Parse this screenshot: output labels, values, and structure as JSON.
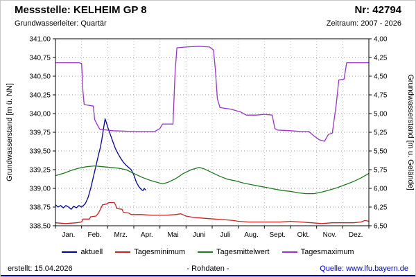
{
  "header": {
    "title": "Messstelle: KELHEIM GP 8",
    "number": "Nr: 42794",
    "aquifer": "Grundwasserleiter: Quartär",
    "period": "Zeitraum: 2007 - 2026"
  },
  "footer": {
    "created": "erstellt: 15.04.2026",
    "center": "- Rohdaten -",
    "source": "Quelle: www.lfu.bayern.de"
  },
  "colors": {
    "link": "#0000cc",
    "bottom_rule": "#0000aa"
  },
  "chart_data": {
    "type": "line",
    "title": "",
    "x_unit": "month (0 = 1. Jan, 12 = 31. Dez)",
    "x_categories": [
      "Jan.",
      "Feb.",
      "Mrz.",
      "Apr.",
      "Mai",
      "Juni",
      "Juli",
      "Aug.",
      "Sept.",
      "Okt.",
      "Nov.",
      "Dez."
    ],
    "ylabel_left": "Grundwasserstand [m ü. NN]",
    "ylabel_right": "Grundwasserstand [m u. Gelände]",
    "ylim_left": [
      338.5,
      341.0
    ],
    "ylim_right_top_to_bottom": [
      4.0,
      6.5
    ],
    "y_left_ticks": [
      "341,00",
      "340,75",
      "340,50",
      "340,25",
      "340,00",
      "339,75",
      "339,50",
      "339,25",
      "339,00",
      "338,75",
      "338,50"
    ],
    "y_right_ticks": [
      "4,00",
      "4,25",
      "4,50",
      "4,75",
      "5,00",
      "5,25",
      "5,50",
      "5,75",
      "6,00",
      "6,25",
      "6,50"
    ],
    "grid": "dotted",
    "legend_position": "bottom",
    "series": [
      {
        "name": "aktuell",
        "color": "#0000aa",
        "points": [
          [
            0.0,
            338.78
          ],
          [
            0.1,
            338.75
          ],
          [
            0.2,
            338.77
          ],
          [
            0.3,
            338.74
          ],
          [
            0.4,
            338.77
          ],
          [
            0.5,
            338.75
          ],
          [
            0.6,
            338.72
          ],
          [
            0.7,
            338.76
          ],
          [
            0.8,
            338.74
          ],
          [
            0.9,
            338.77
          ],
          [
            1.0,
            338.75
          ],
          [
            1.1,
            338.78
          ],
          [
            1.15,
            338.8
          ],
          [
            1.25,
            338.88
          ],
          [
            1.35,
            339.0
          ],
          [
            1.45,
            339.15
          ],
          [
            1.55,
            339.3
          ],
          [
            1.65,
            339.45
          ],
          [
            1.72,
            339.55
          ],
          [
            1.78,
            339.66
          ],
          [
            1.84,
            339.8
          ],
          [
            1.9,
            339.93
          ],
          [
            1.95,
            339.88
          ],
          [
            2.0,
            339.82
          ],
          [
            2.1,
            339.72
          ],
          [
            2.2,
            339.62
          ],
          [
            2.3,
            339.53
          ],
          [
            2.4,
            339.46
          ],
          [
            2.5,
            339.4
          ],
          [
            2.6,
            339.35
          ],
          [
            2.7,
            339.31
          ],
          [
            2.8,
            339.28
          ],
          [
            2.9,
            339.25
          ],
          [
            3.0,
            339.18
          ],
          [
            3.1,
            339.08
          ],
          [
            3.2,
            339.02
          ],
          [
            3.3,
            338.98
          ],
          [
            3.35,
            338.97
          ],
          [
            3.4,
            339.0
          ],
          [
            3.45,
            338.98
          ]
        ]
      },
      {
        "name": "Tagesminimum",
        "color": "#cc2222",
        "points": [
          [
            0.0,
            338.54
          ],
          [
            0.4,
            338.53
          ],
          [
            0.8,
            338.54
          ],
          [
            1.0,
            338.55
          ],
          [
            1.05,
            338.59
          ],
          [
            1.3,
            338.59
          ],
          [
            1.35,
            338.62
          ],
          [
            1.55,
            338.63
          ],
          [
            1.65,
            338.67
          ],
          [
            1.72,
            338.72
          ],
          [
            1.8,
            338.78
          ],
          [
            1.95,
            338.79
          ],
          [
            2.05,
            338.81
          ],
          [
            2.25,
            338.81
          ],
          [
            2.3,
            338.78
          ],
          [
            2.35,
            338.73
          ],
          [
            2.55,
            338.72
          ],
          [
            2.6,
            338.68
          ],
          [
            2.8,
            338.67
          ],
          [
            2.9,
            338.65
          ],
          [
            3.3,
            338.65
          ],
          [
            3.7,
            338.64
          ],
          [
            4.2,
            338.64
          ],
          [
            4.6,
            338.65
          ],
          [
            4.8,
            338.66
          ],
          [
            5.0,
            338.63
          ],
          [
            5.3,
            338.61
          ],
          [
            5.7,
            338.6
          ],
          [
            6.1,
            338.59
          ],
          [
            6.5,
            338.58
          ],
          [
            6.8,
            338.57
          ],
          [
            7.0,
            338.56
          ],
          [
            7.4,
            338.55
          ],
          [
            8.0,
            338.55
          ],
          [
            8.6,
            338.55
          ],
          [
            9.0,
            338.56
          ],
          [
            9.4,
            338.55
          ],
          [
            9.8,
            338.54
          ],
          [
            10.2,
            338.53
          ],
          [
            10.6,
            338.54
          ],
          [
            11.0,
            338.54
          ],
          [
            11.4,
            338.54
          ],
          [
            11.7,
            338.55
          ],
          [
            11.85,
            338.57
          ],
          [
            12.0,
            338.56
          ]
        ]
      },
      {
        "name": "Tagesmittelwert",
        "color": "#1f7a1f",
        "points": [
          [
            0.0,
            339.17
          ],
          [
            0.3,
            339.2
          ],
          [
            0.6,
            339.24
          ],
          [
            0.9,
            339.27
          ],
          [
            1.2,
            339.29
          ],
          [
            1.5,
            339.3
          ],
          [
            1.8,
            339.29
          ],
          [
            2.1,
            339.28
          ],
          [
            2.4,
            339.27
          ],
          [
            2.7,
            339.25
          ],
          [
            3.0,
            339.2
          ],
          [
            3.3,
            339.15
          ],
          [
            3.6,
            339.11
          ],
          [
            3.9,
            339.08
          ],
          [
            4.1,
            339.06
          ],
          [
            4.3,
            339.08
          ],
          [
            4.6,
            339.13
          ],
          [
            4.9,
            339.2
          ],
          [
            5.2,
            339.25
          ],
          [
            5.5,
            339.28
          ],
          [
            5.7,
            339.26
          ],
          [
            6.0,
            339.21
          ],
          [
            6.3,
            339.16
          ],
          [
            6.6,
            339.12
          ],
          [
            6.9,
            339.1
          ],
          [
            7.2,
            339.07
          ],
          [
            7.5,
            339.05
          ],
          [
            7.8,
            339.03
          ],
          [
            8.1,
            339.01
          ],
          [
            8.4,
            338.99
          ],
          [
            8.7,
            338.97
          ],
          [
            9.0,
            338.96
          ],
          [
            9.3,
            338.94
          ],
          [
            9.6,
            338.93
          ],
          [
            9.9,
            338.93
          ],
          [
            10.2,
            338.95
          ],
          [
            10.5,
            338.98
          ],
          [
            10.8,
            339.01
          ],
          [
            11.1,
            339.05
          ],
          [
            11.4,
            339.09
          ],
          [
            11.7,
            339.14
          ],
          [
            12.0,
            339.2
          ]
        ]
      },
      {
        "name": "Tagesmaximum",
        "color": "#9933cc",
        "points": [
          [
            0.0,
            340.68
          ],
          [
            0.9,
            340.68
          ],
          [
            1.0,
            340.67
          ],
          [
            1.05,
            340.3
          ],
          [
            1.1,
            340.12
          ],
          [
            1.45,
            340.1
          ],
          [
            1.5,
            339.92
          ],
          [
            1.6,
            339.85
          ],
          [
            1.7,
            339.79
          ],
          [
            2.2,
            339.77
          ],
          [
            3.0,
            339.76
          ],
          [
            3.8,
            339.76
          ],
          [
            4.0,
            339.8
          ],
          [
            4.1,
            339.86
          ],
          [
            4.5,
            339.86
          ],
          [
            4.58,
            340.55
          ],
          [
            4.65,
            340.88
          ],
          [
            5.0,
            340.89
          ],
          [
            5.5,
            340.9
          ],
          [
            5.9,
            340.89
          ],
          [
            6.05,
            340.85
          ],
          [
            6.12,
            340.6
          ],
          [
            6.2,
            340.2
          ],
          [
            6.3,
            340.08
          ],
          [
            6.7,
            340.06
          ],
          [
            7.1,
            340.02
          ],
          [
            7.3,
            339.98
          ],
          [
            7.7,
            339.98
          ],
          [
            8.0,
            339.99
          ],
          [
            8.3,
            339.98
          ],
          [
            8.4,
            339.8
          ],
          [
            8.5,
            339.78
          ],
          [
            9.0,
            339.77
          ],
          [
            9.4,
            339.76
          ],
          [
            9.7,
            339.76
          ],
          [
            9.9,
            339.7
          ],
          [
            10.1,
            339.65
          ],
          [
            10.3,
            339.63
          ],
          [
            10.45,
            339.72
          ],
          [
            10.6,
            339.74
          ],
          [
            10.75,
            340.12
          ],
          [
            10.85,
            340.45
          ],
          [
            11.05,
            340.46
          ],
          [
            11.15,
            340.68
          ],
          [
            11.5,
            340.68
          ],
          [
            12.0,
            340.68
          ]
        ]
      }
    ]
  }
}
